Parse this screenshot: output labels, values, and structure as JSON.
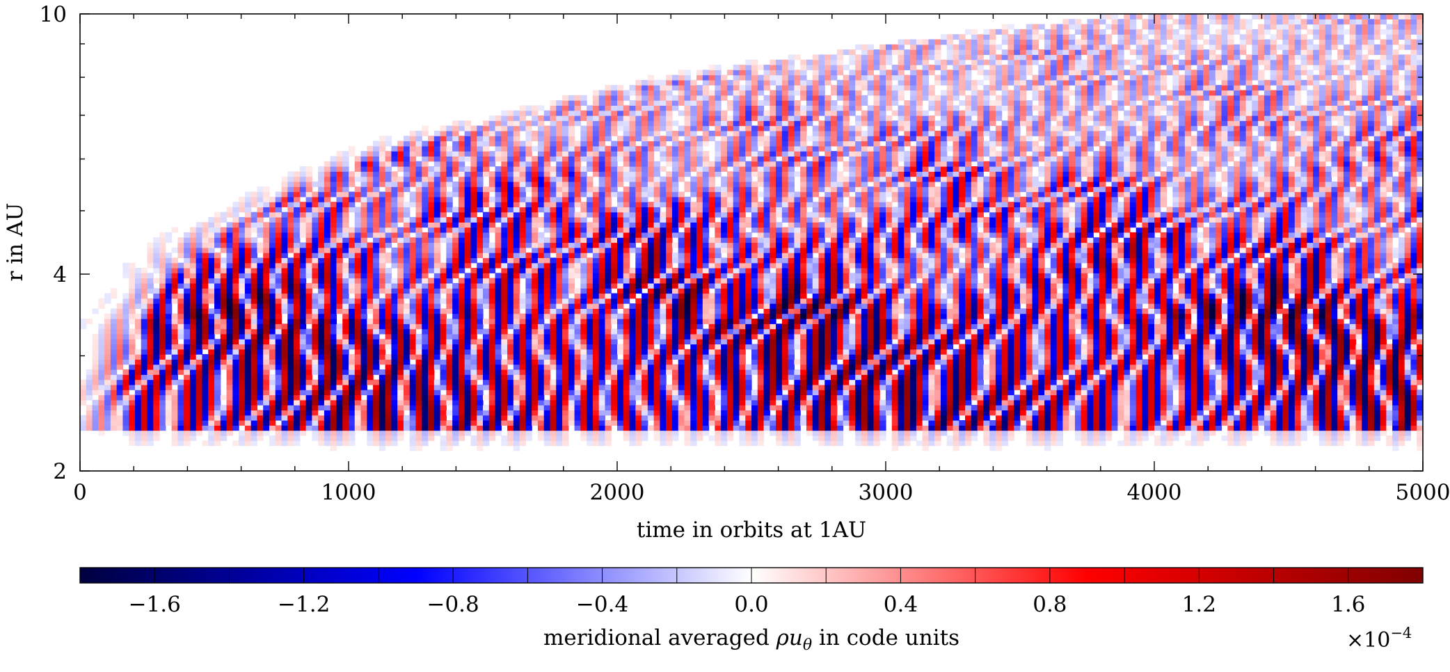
{
  "chart_data": [
    {
      "type": "heatmap",
      "xlabel": "time in orbits at 1AU",
      "ylabel": "r in AU",
      "xlim": [
        0,
        5000
      ],
      "ylim": [
        2,
        10
      ],
      "yscale": "log",
      "xticks": [
        0,
        1000,
        2000,
        3000,
        4000,
        5000
      ],
      "xtick_labels": [
        "0",
        "1000",
        "2000",
        "3000",
        "4000",
        "5000"
      ],
      "yticks": [
        2,
        4,
        10
      ],
      "ytick_labels": [
        "2",
        "4",
        "10"
      ],
      "colorscale": [
        "#000040",
        "#0000ff",
        "#ffffff",
        "#ff0000",
        "#800000"
      ],
      "clim": [
        -1.8,
        1.8
      ],
      "features": {
        "wave_band_lower_r": [
          2.3,
          3.4
        ],
        "wave_band_onset_time": 150,
        "wave_stripe_slope_direction": "decreasing r with time"
      },
      "grid": false
    },
    {
      "type": "colorbar",
      "orientation": "horizontal",
      "label": "meridional averaged ρu_θ in code units",
      "label_prefix": "meridional averaged ",
      "label_symbol": "ρu",
      "label_subscript": "θ",
      "label_suffix": " in code units",
      "multiplier": "×10",
      "multiplier_exponent": "−4",
      "range": [
        -1.8,
        1.8
      ],
      "ticks": [
        -1.6,
        -1.2,
        -0.8,
        -0.4,
        0.0,
        0.4,
        0.8,
        1.2,
        1.6
      ],
      "tick_labels": [
        "−1.6",
        "−1.2",
        "−0.8",
        "−0.4",
        "0.0",
        "0.4",
        "0.8",
        "1.2",
        "1.6"
      ],
      "colors": [
        "#000040",
        "#0000ff",
        "#ffffff",
        "#ff0000",
        "#800000"
      ]
    }
  ]
}
